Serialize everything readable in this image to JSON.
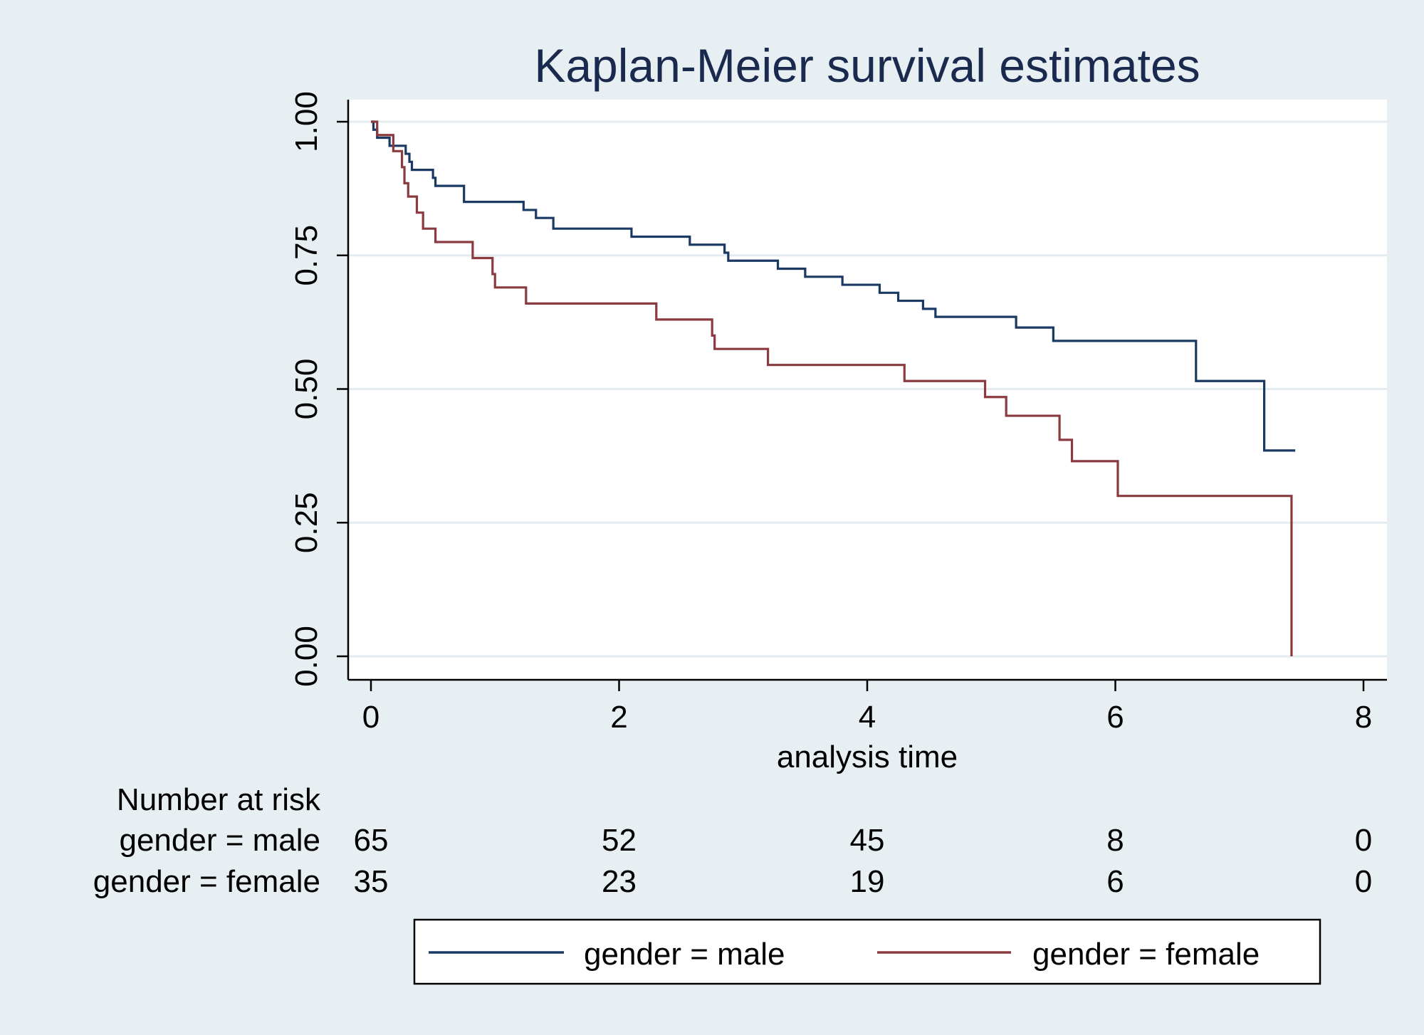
{
  "chart_data": {
    "type": "line",
    "title": "Kaplan-Meier survival estimates",
    "xlabel": "analysis time",
    "ylabel": "",
    "xlim": [
      0,
      8
    ],
    "ylim": [
      0,
      1
    ],
    "x_ticks": [
      "0",
      "2",
      "4",
      "6",
      "8"
    ],
    "y_ticks": [
      "0.00",
      "0.25",
      "0.50",
      "0.75",
      "1.00"
    ],
    "grid": true,
    "legend_position": "bottom",
    "series": [
      {
        "name": "gender = male",
        "color": "#1a3a63",
        "steps": [
          [
            0,
            1.0
          ],
          [
            0.02,
            0.985
          ],
          [
            0.05,
            0.97
          ],
          [
            0.15,
            0.955
          ],
          [
            0.28,
            0.94
          ],
          [
            0.31,
            0.925
          ],
          [
            0.33,
            0.91
          ],
          [
            0.5,
            0.895
          ],
          [
            0.52,
            0.88
          ],
          [
            0.75,
            0.85
          ],
          [
            1.23,
            0.835
          ],
          [
            1.33,
            0.82
          ],
          [
            1.47,
            0.8
          ],
          [
            2.1,
            0.785
          ],
          [
            2.57,
            0.77
          ],
          [
            2.85,
            0.755
          ],
          [
            2.88,
            0.74
          ],
          [
            3.28,
            0.725
          ],
          [
            3.5,
            0.71
          ],
          [
            3.8,
            0.695
          ],
          [
            4.1,
            0.68
          ],
          [
            4.25,
            0.665
          ],
          [
            4.45,
            0.65
          ],
          [
            4.55,
            0.635
          ],
          [
            5.2,
            0.615
          ],
          [
            5.5,
            0.59
          ],
          [
            6.65,
            0.515
          ],
          [
            7.2,
            0.385
          ],
          [
            7.45,
            0.385
          ]
        ]
      },
      {
        "name": "gender = female",
        "color": "#8b3a3f",
        "steps": [
          [
            0,
            1.0
          ],
          [
            0.05,
            0.975
          ],
          [
            0.18,
            0.945
          ],
          [
            0.25,
            0.915
          ],
          [
            0.27,
            0.885
          ],
          [
            0.3,
            0.86
          ],
          [
            0.37,
            0.83
          ],
          [
            0.42,
            0.8
          ],
          [
            0.52,
            0.775
          ],
          [
            0.82,
            0.745
          ],
          [
            0.98,
            0.715
          ],
          [
            1.0,
            0.69
          ],
          [
            1.25,
            0.66
          ],
          [
            2.3,
            0.63
          ],
          [
            2.75,
            0.6
          ],
          [
            2.77,
            0.575
          ],
          [
            3.2,
            0.545
          ],
          [
            4.3,
            0.515
          ],
          [
            4.95,
            0.485
          ],
          [
            5.12,
            0.45
          ],
          [
            5.55,
            0.405
          ],
          [
            5.65,
            0.365
          ],
          [
            6.02,
            0.3
          ],
          [
            7.42,
            0.0
          ]
        ]
      }
    ],
    "risk_table": {
      "header": "Number at risk",
      "times": [
        0,
        2,
        4,
        6,
        8
      ],
      "rows": [
        {
          "label": "gender = male",
          "values": [
            "65",
            "52",
            "45",
            "8",
            "0"
          ]
        },
        {
          "label": "gender = female",
          "values": [
            "35",
            "23",
            "19",
            "6",
            "0"
          ]
        }
      ]
    }
  }
}
